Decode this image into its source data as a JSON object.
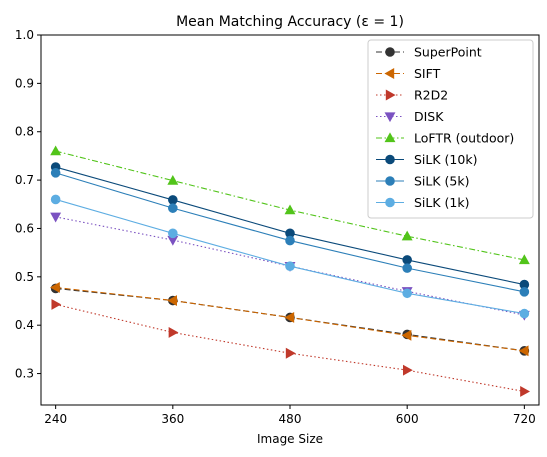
{
  "chart_data": {
    "type": "line",
    "title": "Mean Matching Accuracy (ε = 1)",
    "xlabel": "Image Size",
    "ylabel": "",
    "x": [
      240,
      360,
      480,
      600,
      720
    ],
    "xlim": [
      225,
      735
    ],
    "ylim": [
      0.235,
      1.0
    ],
    "yticks": [
      0.3,
      0.4,
      0.5,
      0.6,
      0.7,
      0.8,
      0.9,
      1.0
    ],
    "ytick_labels": [
      "0.3",
      "0.4",
      "0.5",
      "0.6",
      "0.7",
      "0.8",
      "0.9",
      "1.0"
    ],
    "xtick_labels": [
      "240",
      "360",
      "480",
      "600",
      "720"
    ],
    "grid": false,
    "legend_position": "top-right",
    "series": [
      {
        "name": "SuperPoint",
        "values": [
          0.476,
          0.451,
          0.416,
          0.381,
          0.347
        ],
        "color": "#333333",
        "marker": "circle",
        "dash": "dashed"
      },
      {
        "name": "SIFT",
        "values": [
          0.478,
          0.451,
          0.416,
          0.379,
          0.347
        ],
        "color": "#cc6600",
        "marker": "triangle-left",
        "dash": "dashed"
      },
      {
        "name": "R2D2",
        "values": [
          0.443,
          0.385,
          0.342,
          0.307,
          0.263
        ],
        "color": "#c0392b",
        "marker": "triangle-right",
        "dash": "dotted"
      },
      {
        "name": "DISK",
        "values": [
          0.624,
          0.576,
          0.522,
          0.47,
          0.421
        ],
        "color": "#7b52c1",
        "marker": "triangle-down",
        "dash": "dotted"
      },
      {
        "name": "LoFTR (outdoor)",
        "values": [
          0.76,
          0.699,
          0.638,
          0.584,
          0.535
        ],
        "color": "#52c41a",
        "marker": "triangle-up",
        "dash": "dashdot"
      },
      {
        "name": "SiLK (10k)",
        "values": [
          0.727,
          0.659,
          0.59,
          0.535,
          0.484
        ],
        "color": "#0b4a7a",
        "marker": "circle",
        "dash": "solid"
      },
      {
        "name": "SiLK (5k)",
        "values": [
          0.715,
          0.642,
          0.575,
          0.518,
          0.469
        ],
        "color": "#2c7fb8",
        "marker": "circle",
        "dash": "solid"
      },
      {
        "name": "SiLK (1k)",
        "values": [
          0.66,
          0.59,
          0.522,
          0.466,
          0.424
        ],
        "color": "#5dade2",
        "marker": "circle",
        "dash": "solid"
      }
    ]
  }
}
